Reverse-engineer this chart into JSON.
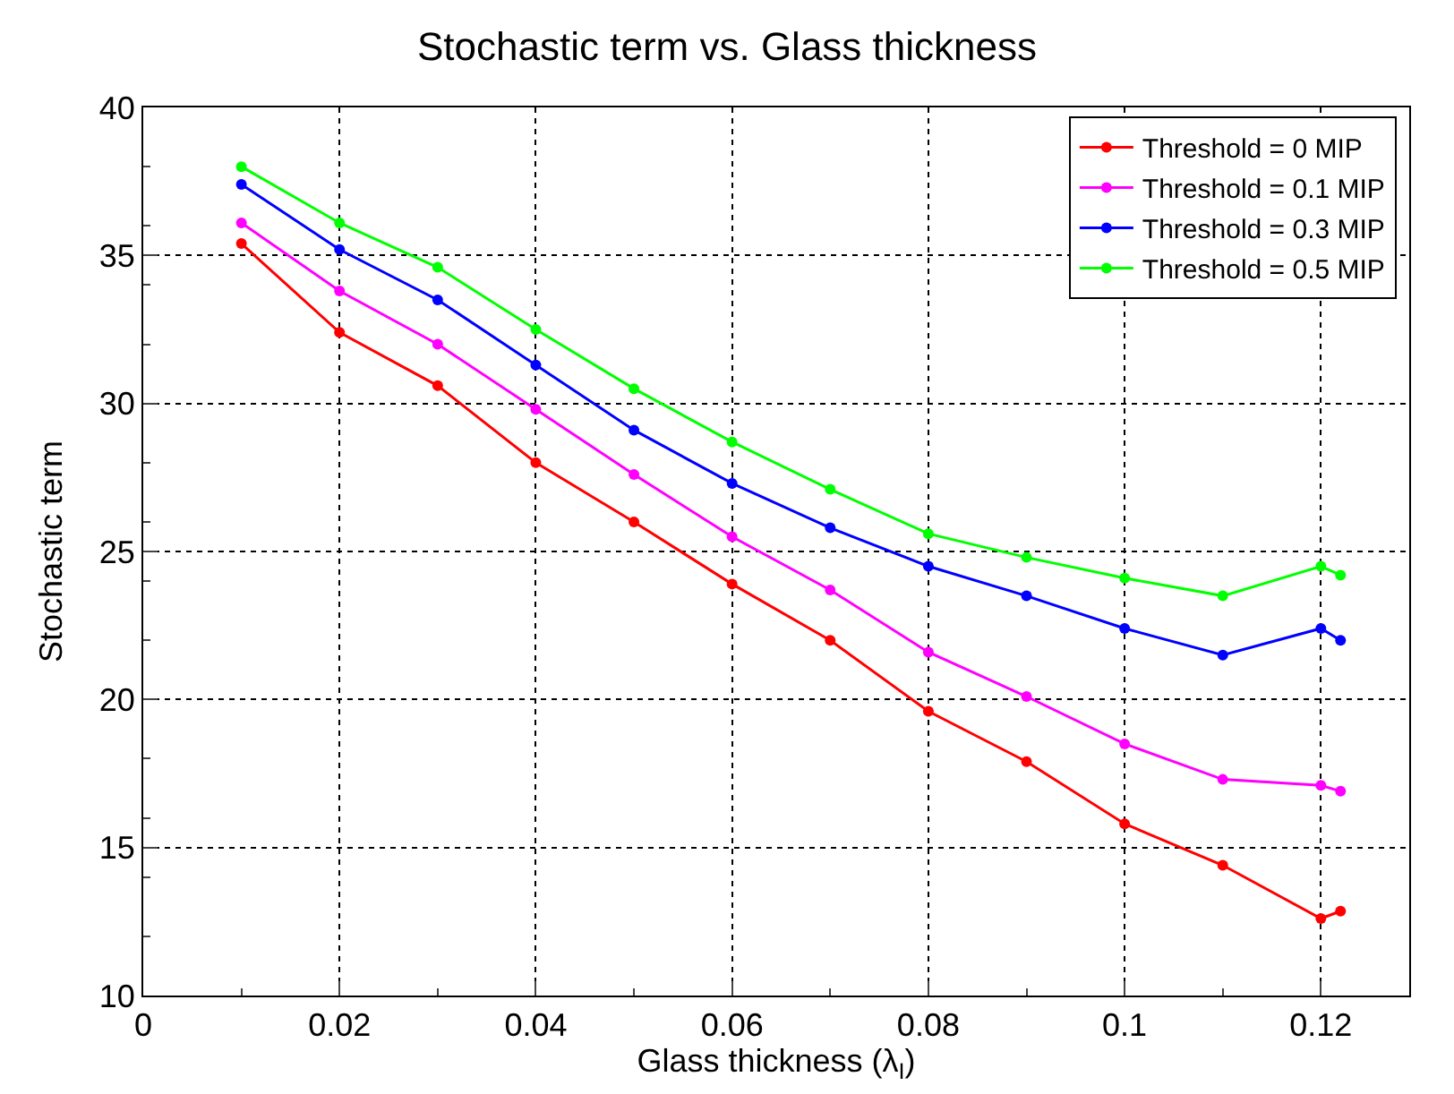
{
  "chart_data": {
    "type": "line",
    "title": "Stochastic term vs. Glass thickness",
    "xlabel": "Glass thickness (λ$_{I}$)",
    "ylabel": "Stochastic term",
    "x": [
      0.01,
      0.02,
      0.03,
      0.04,
      0.05,
      0.06,
      0.07,
      0.08,
      0.09,
      0.1,
      0.11,
      0.12,
      0.122
    ],
    "series": [
      {
        "name": "Threshold = 0 MIP",
        "color": "#ff0000",
        "values": [
          35.4,
          32.4,
          30.6,
          28.0,
          26.0,
          23.9,
          22.0,
          19.6,
          17.9,
          15.8,
          14.4,
          12.6,
          12.85
        ]
      },
      {
        "name": "Threshold = 0.1 MIP",
        "color": "#ff00ff",
        "values": [
          36.1,
          33.8,
          32.0,
          29.8,
          27.6,
          25.5,
          23.7,
          21.6,
          20.1,
          18.5,
          17.3,
          17.1,
          16.9
        ]
      },
      {
        "name": "Threshold = 0.3 MIP",
        "color": "#0000ff",
        "values": [
          37.4,
          35.2,
          33.5,
          31.3,
          29.1,
          27.3,
          25.8,
          24.5,
          23.5,
          22.4,
          21.5,
          22.4,
          22.0
        ]
      },
      {
        "name": "Threshold = 0.5 MIP",
        "color": "#00ff00",
        "values": [
          38.0,
          36.1,
          34.6,
          32.5,
          30.5,
          28.7,
          27.1,
          25.6,
          24.8,
          24.1,
          23.5,
          24.5,
          24.2
        ]
      }
    ],
    "xlim": [
      0,
      0.129
    ],
    "xticks": [
      0,
      0.02,
      0.04,
      0.06,
      0.08,
      0.1,
      0.12
    ],
    "ylim": [
      10,
      40
    ],
    "yticks": [
      10,
      15,
      20,
      25,
      30,
      35,
      40
    ],
    "grid": true,
    "legend": "top right",
    "marker": "circle",
    "line_style": "solid"
  }
}
